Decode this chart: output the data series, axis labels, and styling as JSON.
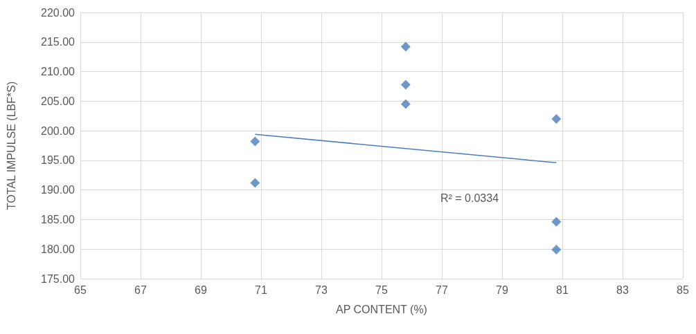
{
  "chart_data": {
    "type": "scatter",
    "xlabel": "AP CONTENT (%)",
    "ylabel": "TOTAL IMPULSE (LBF*S)",
    "series": [
      {
        "color": "#4a7ebb",
        "marker": "diamond",
        "x": [
          70.8,
          70.8,
          75.8,
          75.8,
          75.8,
          80.8,
          80.8,
          80.8
        ],
        "values": [
          198.2,
          191.2,
          214.2,
          207.8,
          204.5,
          202.0,
          184.6,
          179.9
        ]
      },
      {
        "type": "line",
        "color": "#4a7ebb",
        "marker": "none",
        "line_style": "solid",
        "x": [
          70.8,
          80.8
        ],
        "values": [
          199.4,
          194.6
        ]
      }
    ],
    "annotations": [
      "R² = 0.0334"
    ],
    "xlim": [
      65,
      85
    ],
    "xticks": [
      65,
      67,
      69,
      71,
      73,
      75,
      77,
      79,
      81,
      83,
      85
    ],
    "ylim": [
      175,
      220
    ],
    "yticks": [
      {
        "value": 175,
        "label": "175.00"
      },
      {
        "value": 180,
        "label": "180.00"
      },
      {
        "value": 185,
        "label": "185.00"
      },
      {
        "value": 190,
        "label": "190.00"
      },
      {
        "value": 195,
        "label": "195.00"
      },
      {
        "value": 200,
        "label": "200.00"
      },
      {
        "value": 205,
        "label": "205.00"
      },
      {
        "value": 210,
        "label": "210.00"
      },
      {
        "value": 215,
        "label": "215.00"
      },
      {
        "value": 220,
        "label": "220.00"
      }
    ],
    "grid": true
  }
}
